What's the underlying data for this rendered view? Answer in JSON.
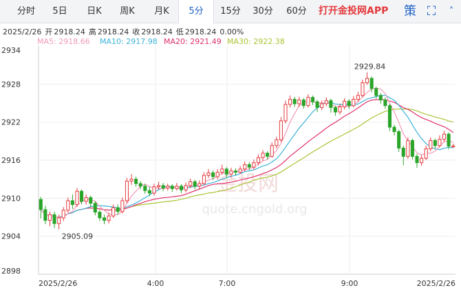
{
  "tabs": [
    {
      "label": "分时",
      "active": false
    },
    {
      "label": "5日",
      "active": false
    },
    {
      "label": "日K",
      "active": false
    },
    {
      "label": "周K",
      "active": false
    },
    {
      "label": "月K",
      "active": false
    },
    {
      "label": "5分",
      "active": true
    },
    {
      "label": "15分",
      "active": false
    },
    {
      "label": "30分",
      "active": false
    },
    {
      "label": "60分",
      "active": false
    }
  ],
  "promo": "打开金投网APP",
  "strategy_icon": "策",
  "fullscreen_icon": "⛶",
  "info": {
    "date": "2025/2/26",
    "open_label": "开",
    "open": "2918.24",
    "high_label": "高",
    "high": "2918.24",
    "close_label": "收",
    "close": "2918.24",
    "low_label": "低",
    "low": "2918.24",
    "change": "0.00%"
  },
  "ma": {
    "ma5": "MA5: 2918.66",
    "ma10": "MA10: 2917.98",
    "ma20": "MA20: 2921.49",
    "ma30": "MA30: 2922.38"
  },
  "colors": {
    "up": "#e4393c",
    "down": "#2aa52a",
    "ma5": "#f39ab6",
    "ma10": "#3cb2d8",
    "ma20": "#e0306b",
    "ma30": "#a7c531"
  },
  "watermark": {
    "line1": "金投网",
    "line2": "quote.cngold.org"
  },
  "chart_data": {
    "type": "candlestick",
    "ylim": [
      2898,
      2934
    ],
    "y_ticks": [
      "2934",
      "2928",
      "2922",
      "2916",
      "2910",
      "2904",
      "2898"
    ],
    "x_ticks": [
      "2025/2/26",
      "4:00",
      "7:00",
      "9:00",
      "2025/2/26"
    ],
    "annotations": [
      {
        "text": "2929.84",
        "index": 72,
        "value": 2929.84
      },
      {
        "text": "2905.09",
        "index": 4,
        "value": 2905.09
      }
    ],
    "candles": [
      [
        2909.8,
        2908.2,
        2910.2,
        2906.8
      ],
      [
        2908.2,
        2906.5,
        2908.8,
        2905.9
      ],
      [
        2906.5,
        2907.4,
        2907.9,
        2905.6
      ],
      [
        2907.4,
        2906.0,
        2907.9,
        2905.3
      ],
      [
        2906.0,
        2906.9,
        2907.4,
        2905.09
      ],
      [
        2906.9,
        2908.1,
        2908.6,
        2906.4
      ],
      [
        2908.1,
        2909.6,
        2910.1,
        2907.7
      ],
      [
        2909.6,
        2909.0,
        2910.6,
        2908.3
      ],
      [
        2909.0,
        2911.1,
        2911.6,
        2908.6
      ],
      [
        2911.1,
        2909.5,
        2911.4,
        2909.0
      ],
      [
        2909.5,
        2910.1,
        2910.6,
        2909.0
      ],
      [
        2910.1,
        2909.2,
        2910.4,
        2908.6
      ],
      [
        2909.2,
        2907.8,
        2909.5,
        2907.3
      ],
      [
        2907.8,
        2906.9,
        2908.1,
        2906.4
      ],
      [
        2906.9,
        2906.5,
        2907.4,
        2905.9
      ],
      [
        2906.5,
        2907.2,
        2907.7,
        2906.0
      ],
      [
        2907.2,
        2908.5,
        2909.0,
        2906.9
      ],
      [
        2908.5,
        2907.9,
        2909.0,
        2907.4
      ],
      [
        2907.9,
        2909.6,
        2910.1,
        2907.6
      ],
      [
        2909.6,
        2912.7,
        2913.2,
        2909.2
      ],
      [
        2912.7,
        2913.0,
        2913.8,
        2912.1
      ],
      [
        2913.0,
        2912.3,
        2913.4,
        2911.8
      ],
      [
        2912.3,
        2911.9,
        2912.7,
        2911.4
      ],
      [
        2911.9,
        2911.2,
        2912.3,
        2910.7
      ],
      [
        2911.2,
        2910.8,
        2911.8,
        2910.3
      ],
      [
        2910.8,
        2911.8,
        2912.3,
        2910.4
      ],
      [
        2911.8,
        2912.0,
        2912.6,
        2911.4
      ],
      [
        2912.0,
        2911.6,
        2912.4,
        2911.1
      ],
      [
        2911.6,
        2911.9,
        2912.3,
        2911.2
      ],
      [
        2911.9,
        2911.5,
        2912.2,
        2911.0
      ],
      [
        2911.5,
        2911.9,
        2912.4,
        2911.2
      ],
      [
        2911.9,
        2911.3,
        2912.2,
        2910.8
      ],
      [
        2911.3,
        2912.0,
        2912.5,
        2910.9
      ],
      [
        2912.0,
        2912.6,
        2913.1,
        2911.6
      ],
      [
        2912.6,
        2911.9,
        2912.9,
        2911.4
      ],
      [
        2911.9,
        2912.3,
        2912.8,
        2911.5
      ],
      [
        2912.3,
        2913.6,
        2914.1,
        2912.0
      ],
      [
        2913.6,
        2914.0,
        2914.6,
        2913.2
      ],
      [
        2914.0,
        2913.4,
        2914.4,
        2912.9
      ],
      [
        2913.4,
        2914.1,
        2914.6,
        2913.0
      ],
      [
        2914.1,
        2914.6,
        2915.3,
        2913.7
      ],
      [
        2914.6,
        2913.8,
        2914.9,
        2913.2
      ],
      [
        2913.8,
        2914.3,
        2914.8,
        2913.3
      ],
      [
        2914.3,
        2914.1,
        2914.7,
        2913.6
      ],
      [
        2914.1,
        2914.6,
        2915.1,
        2913.8
      ],
      [
        2914.6,
        2915.3,
        2915.8,
        2914.2
      ],
      [
        2915.3,
        2914.9,
        2915.7,
        2914.4
      ],
      [
        2914.9,
        2915.6,
        2916.1,
        2914.5
      ],
      [
        2915.6,
        2916.4,
        2916.9,
        2915.2
      ],
      [
        2916.4,
        2917.1,
        2917.6,
        2915.9
      ],
      [
        2917.1,
        2916.6,
        2917.4,
        2916.1
      ],
      [
        2916.6,
        2918.3,
        2918.8,
        2916.4
      ],
      [
        2918.3,
        2919.2,
        2919.7,
        2917.9
      ],
      [
        2919.2,
        2922.2,
        2922.8,
        2918.9
      ],
      [
        2922.2,
        2924.8,
        2925.4,
        2921.8
      ],
      [
        2924.8,
        2925.6,
        2926.2,
        2924.3
      ],
      [
        2925.6,
        2924.9,
        2926.0,
        2924.4
      ],
      [
        2924.9,
        2925.5,
        2926.0,
        2924.4
      ],
      [
        2925.5,
        2924.6,
        2925.8,
        2924.1
      ],
      [
        2924.6,
        2925.9,
        2926.4,
        2924.3
      ],
      [
        2925.9,
        2925.2,
        2926.2,
        2924.7
      ],
      [
        2925.2,
        2924.3,
        2925.5,
        2923.6
      ],
      [
        2924.3,
        2924.9,
        2925.4,
        2923.9
      ],
      [
        2924.9,
        2925.4,
        2925.9,
        2924.5
      ],
      [
        2925.4,
        2924.3,
        2925.7,
        2923.5
      ],
      [
        2924.3,
        2923.6,
        2924.6,
        2923.0
      ],
      [
        2923.6,
        2924.4,
        2924.9,
        2923.2
      ],
      [
        2924.4,
        2925.3,
        2925.8,
        2924.0
      ],
      [
        2925.3,
        2924.6,
        2925.6,
        2924.1
      ],
      [
        2924.6,
        2925.6,
        2926.1,
        2924.3
      ],
      [
        2925.6,
        2926.2,
        2926.8,
        2925.2
      ],
      [
        2926.2,
        2928.2,
        2928.7,
        2925.9
      ],
      [
        2928.2,
        2928.9,
        2929.84,
        2927.9
      ],
      [
        2928.9,
        2927.3,
        2929.2,
        2926.7
      ],
      [
        2927.3,
        2926.2,
        2927.6,
        2925.7
      ],
      [
        2926.2,
        2925.5,
        2926.6,
        2924.9
      ],
      [
        2925.5,
        2924.6,
        2925.9,
        2924.1
      ],
      [
        2924.6,
        2921.2,
        2924.9,
        2920.6
      ],
      [
        2921.2,
        2920.5,
        2921.6,
        2919.9
      ],
      [
        2920.5,
        2917.9,
        2920.8,
        2917.3
      ],
      [
        2917.9,
        2916.6,
        2918.3,
        2915.2
      ],
      [
        2916.6,
        2919.1,
        2919.6,
        2916.2
      ],
      [
        2919.1,
        2916.6,
        2919.4,
        2916.1
      ],
      [
        2916.6,
        2915.6,
        2917.0,
        2914.8
      ],
      [
        2915.6,
        2916.3,
        2916.8,
        2915.1
      ],
      [
        2916.3,
        2917.8,
        2918.3,
        2916.0
      ],
      [
        2917.8,
        2919.1,
        2919.6,
        2917.4
      ],
      [
        2919.1,
        2918.3,
        2919.4,
        2917.8
      ],
      [
        2918.3,
        2919.3,
        2919.9,
        2918.0
      ],
      [
        2919.3,
        2920.1,
        2920.6,
        2918.9
      ],
      [
        2920.1,
        2918.2,
        2920.4,
        2917.7
      ],
      [
        2918.2,
        2918.24,
        2918.6,
        2917.9
      ]
    ]
  }
}
